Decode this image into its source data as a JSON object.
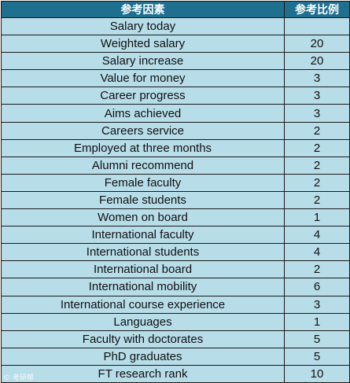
{
  "table": {
    "headers": [
      "参考因素",
      "参考比例"
    ],
    "rows": [
      {
        "factor": "Salary today",
        "ratio": ""
      },
      {
        "factor": "Weighted salary",
        "ratio": "20"
      },
      {
        "factor": "Salary increase",
        "ratio": "20"
      },
      {
        "factor": "Value for money",
        "ratio": "3"
      },
      {
        "factor": "Career progress",
        "ratio": "3"
      },
      {
        "factor": "Aims achieved",
        "ratio": "3"
      },
      {
        "factor": "Careers service",
        "ratio": "2"
      },
      {
        "factor": "Employed at three months",
        "ratio": "2"
      },
      {
        "factor": "Alumni recommend",
        "ratio": "2"
      },
      {
        "factor": "Female faculty",
        "ratio": "2"
      },
      {
        "factor": "Female students",
        "ratio": "2"
      },
      {
        "factor": "Women on board",
        "ratio": "1"
      },
      {
        "factor": "International faculty",
        "ratio": "4"
      },
      {
        "factor": "International students",
        "ratio": "4"
      },
      {
        "factor": "International board",
        "ratio": "2"
      },
      {
        "factor": "International mobility",
        "ratio": "6"
      },
      {
        "factor": "International course experience",
        "ratio": "3"
      },
      {
        "factor": "Languages",
        "ratio": "1"
      },
      {
        "factor": "Faculty with doctorates",
        "ratio": "5"
      },
      {
        "factor": "PhD graduates",
        "ratio": "5"
      },
      {
        "factor": "FT research rank",
        "ratio": "10"
      }
    ]
  },
  "watermark": {
    "text": "© 考研帮"
  },
  "colors": {
    "header_bg": "#1f6f8f",
    "cell_bg": "#b7dde8",
    "border": "#1a1a1a"
  }
}
